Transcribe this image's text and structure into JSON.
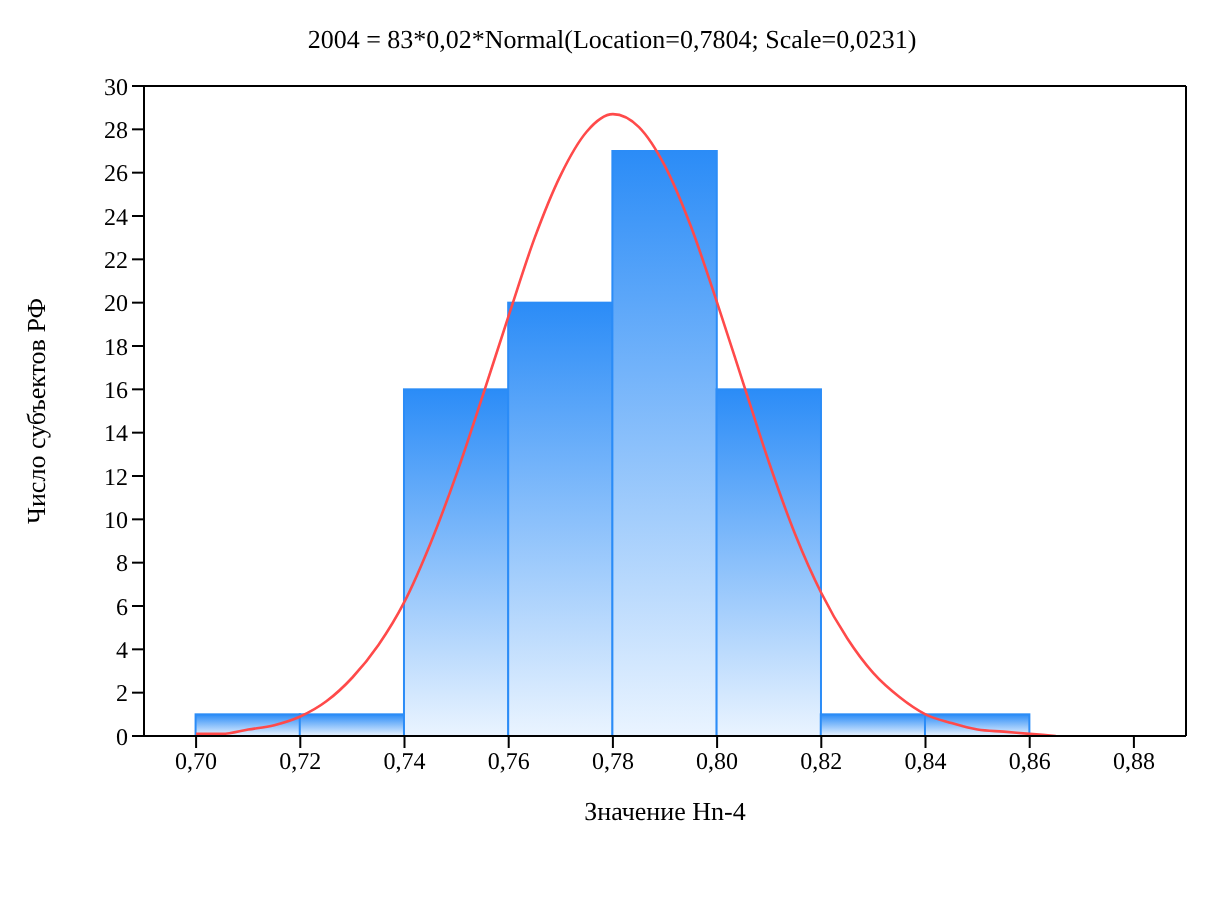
{
  "chart_data": {
    "type": "histogram",
    "title": "2004 = 83*0,02*Normal(Location=0,7804; Scale=0,0231)",
    "xlabel": "Значение Hn-4",
    "ylabel": "Число субъектов РФ",
    "bins": [
      0.7,
      0.72,
      0.74,
      0.76,
      0.78,
      0.8,
      0.82,
      0.84,
      0.86
    ],
    "values": [
      1,
      1,
      16,
      20,
      27,
      16,
      1,
      1
    ],
    "color": "#2b8cf7",
    "xlim": [
      0.69,
      0.89
    ],
    "xticks": [
      {
        "value": 0.7,
        "label": "0,70"
      },
      {
        "value": 0.72,
        "label": "0,72"
      },
      {
        "value": 0.74,
        "label": "0,74"
      },
      {
        "value": 0.76,
        "label": "0,76"
      },
      {
        "value": 0.78,
        "label": "0,78"
      },
      {
        "value": 0.8,
        "label": "0,80"
      },
      {
        "value": 0.82,
        "label": "0,82"
      },
      {
        "value": 0.84,
        "label": "0,84"
      },
      {
        "value": 0.86,
        "label": "0,86"
      },
      {
        "value": 0.88,
        "label": "0,88"
      }
    ],
    "ylim": [
      0,
      30
    ],
    "yticks": [
      0,
      2,
      4,
      6,
      8,
      10,
      12,
      14,
      16,
      18,
      20,
      22,
      24,
      26,
      28,
      30
    ],
    "series": [
      {
        "type": "line",
        "color": "#ff4a4a",
        "x": [
          0.7,
          0.705,
          0.71,
          0.715,
          0.72,
          0.725,
          0.73,
          0.735,
          0.74,
          0.745,
          0.75,
          0.755,
          0.76,
          0.765,
          0.77,
          0.775,
          0.78,
          0.785,
          0.79,
          0.795,
          0.8,
          0.805,
          0.81,
          0.815,
          0.82,
          0.825,
          0.83,
          0.835,
          0.84,
          0.845,
          0.85,
          0.855,
          0.86,
          0.865
        ],
        "values": [
          0.1,
          0.1,
          0.3,
          0.5,
          0.9,
          1.6,
          2.7,
          4.2,
          6.2,
          8.9,
          12.1,
          15.7,
          19.4,
          23.0,
          25.9,
          27.9,
          28.7,
          28.1,
          26.3,
          23.5,
          20.0,
          16.3,
          12.6,
          9.3,
          6.6,
          4.5,
          2.9,
          1.8,
          1.0,
          0.6,
          0.3,
          0.2,
          0.1,
          0.0
        ]
      }
    ]
  }
}
